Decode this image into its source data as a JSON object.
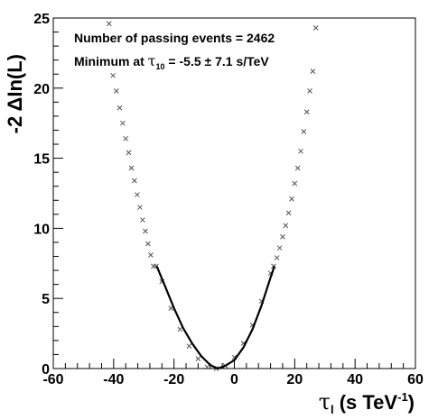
{
  "chart_data": {
    "type": "scatter",
    "xlabel": {
      "main": "τ",
      "sub": "l",
      "unit_prefix": " (s TeV",
      "unit_sup": "-1",
      "unit_suffix": ")"
    },
    "ylabel": "-2 ΔIn(L)",
    "xlim": [
      -60,
      60
    ],
    "ylim": [
      0,
      25
    ],
    "x_ticks": [
      -60,
      -40,
      -20,
      0,
      20,
      40,
      60
    ],
    "y_ticks": [
      0,
      5,
      10,
      15,
      20,
      25
    ],
    "grid": false,
    "annotations": [
      "Number of passing events = 2462",
      {
        "prefix": "Minimum at ",
        "symbol": "τ",
        "sub": "10",
        "suffix": " = -5.5 ± 7.1 s/TeV"
      }
    ],
    "series": [
      {
        "marker": "x",
        "x": [
          -41.5,
          -40.2,
          -39.1,
          -38.0,
          -37.0,
          -36.0,
          -35.0,
          -34.1,
          -33.1,
          -32.2,
          -31.3,
          -30.4,
          -29.5,
          -28.6,
          -27.7,
          -26.8,
          -25.9,
          -24.0,
          -21.0,
          -18.0,
          -15.0,
          -12.0,
          -9.0,
          -6.0,
          -3.0,
          0.0,
          3.0,
          6.0,
          9.0,
          12.0,
          13.0,
          14.1,
          15.0,
          16.0,
          17.0,
          18.0,
          19.0,
          20.0,
          21.0,
          22.0,
          23.0,
          24.0,
          25.0,
          26.0,
          27.0
        ],
        "y": [
          24.6,
          20.9,
          19.8,
          18.6,
          17.5,
          16.4,
          15.4,
          14.3,
          13.4,
          12.4,
          11.5,
          10.6,
          9.8,
          8.9,
          8.1,
          7.3,
          7.3,
          6.2,
          4.3,
          2.8,
          1.6,
          0.7,
          0.1,
          0.0,
          0.2,
          0.8,
          1.8,
          3.1,
          4.8,
          6.8,
          7.3,
          7.9,
          8.6,
          9.4,
          10.2,
          11.1,
          12.1,
          13.2,
          14.3,
          15.5,
          16.9,
          18.3,
          19.8,
          21.2,
          24.3
        ]
      },
      {
        "line": "solid",
        "x": [
          -25.7,
          -23,
          -20,
          -17,
          -14,
          -11,
          -8,
          -5.5,
          -3,
          0,
          3,
          6,
          9,
          12,
          13.3
        ],
        "y": [
          7.3,
          5.9,
          4.3,
          2.9,
          1.8,
          0.9,
          0.25,
          0.0,
          0.2,
          0.6,
          1.5,
          2.8,
          4.5,
          6.5,
          7.3
        ]
      }
    ]
  }
}
